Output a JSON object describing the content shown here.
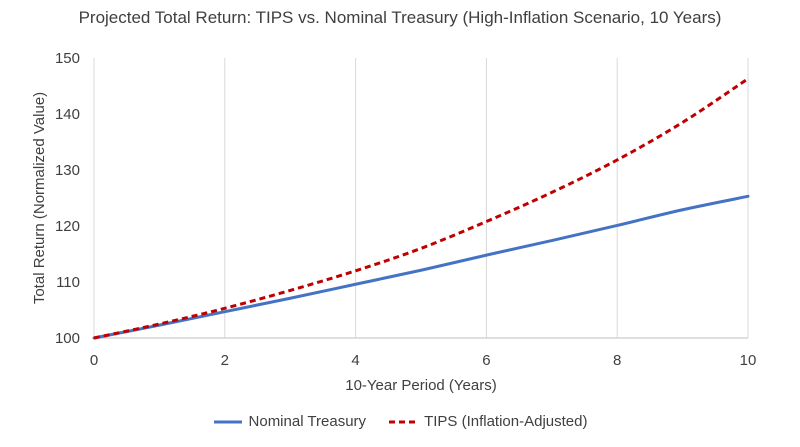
{
  "chart_data": {
    "type": "line",
    "title": "Projected Total Return: TIPS vs. Nominal Treasury (High-Inflation Scenario, 10 Years)",
    "xlabel": "10-Year Period (Years)",
    "ylabel": "Total Return (Normalized Value)",
    "xlim": [
      0,
      10
    ],
    "ylim": [
      100,
      150
    ],
    "x_ticks": [
      "0",
      "2",
      "4",
      "6",
      "8",
      "10"
    ],
    "y_ticks": [
      "100",
      "110",
      "120",
      "130",
      "140",
      "150"
    ],
    "grid": "vertical",
    "legend_position": "bottom",
    "x": [
      0,
      1,
      2,
      3,
      4,
      5,
      6,
      7,
      8,
      9,
      10
    ],
    "series": [
      {
        "name": "Nominal Treasury",
        "color": "#4472c4",
        "style": "solid",
        "values": [
          100,
          102.3,
          104.7,
          107.1,
          109.6,
          112.1,
          114.8,
          117.4,
          120.1,
          122.9,
          125.3
        ]
      },
      {
        "name": "TIPS (Inflation-Adjusted)",
        "color": "#c00000",
        "style": "dashed",
        "values": [
          100,
          102.5,
          105.3,
          108.5,
          112.0,
          116.0,
          120.8,
          126.0,
          131.8,
          138.5,
          146.3
        ]
      }
    ]
  }
}
